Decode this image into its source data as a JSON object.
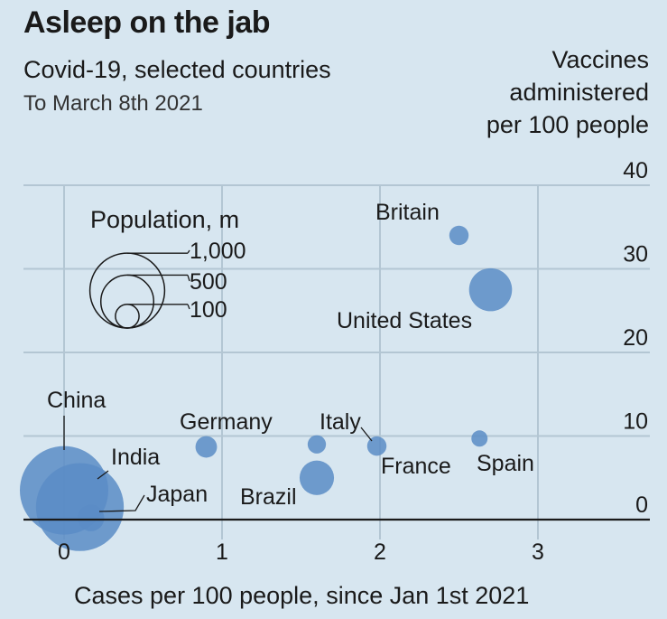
{
  "title": "Asleep on the jab",
  "subtitle": "Covid-19, selected countries",
  "period": "To March 8th 2021",
  "ylabel_lines": [
    "Vaccines",
    "administered",
    "per 100 people"
  ],
  "chart_data": {
    "type": "scatter",
    "title": "Asleep on the jab",
    "subtitle": "Covid-19, selected countries",
    "xlabel": "Cases per 100 people, since Jan 1st 2021",
    "ylabel": "Vaccines administered per 100 people",
    "xlim": [
      0,
      3.7
    ],
    "ylim": [
      0,
      40
    ],
    "xticks": [
      0,
      1,
      2,
      3
    ],
    "yticks": [
      0,
      10,
      20,
      30,
      40
    ],
    "grid": true,
    "size_legend": {
      "title": "Population, m",
      "values": [
        1000,
        500,
        100
      ],
      "labels": [
        "1,000",
        "500",
        "100"
      ]
    },
    "points": [
      {
        "label": "Britain",
        "x": 2.5,
        "y": 34.0,
        "population": 67
      },
      {
        "label": "United States",
        "x": 2.7,
        "y": 27.5,
        "population": 330
      },
      {
        "label": "China",
        "x": 0.0,
        "y": 3.5,
        "population": 1400
      },
      {
        "label": "India",
        "x": 0.1,
        "y": 1.5,
        "population": 1380
      },
      {
        "label": "Japan",
        "x": 0.17,
        "y": 0.2,
        "population": 126
      },
      {
        "label": "Germany",
        "x": 0.9,
        "y": 8.7,
        "population": 83
      },
      {
        "label": "Italy",
        "x": 1.6,
        "y": 9.0,
        "population": 60
      },
      {
        "label": "France",
        "x": 1.98,
        "y": 8.8,
        "population": 67
      },
      {
        "label": "Spain",
        "x": 2.63,
        "y": 9.7,
        "population": 47
      },
      {
        "label": "Brazil",
        "x": 1.6,
        "y": 5.0,
        "population": 212
      }
    ],
    "colors": {
      "bubble": "#5b8cc6",
      "grid": "#b3c6d3",
      "axis": "#1a1a1a"
    }
  }
}
